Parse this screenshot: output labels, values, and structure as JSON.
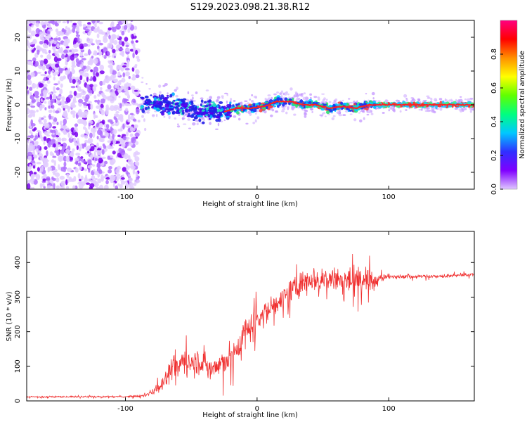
{
  "figure": {
    "title": "S129.2023.098.21.38.R12"
  },
  "colors": {
    "snr_line": "#f03030",
    "frequency_line": "#ff2020",
    "background": "#ffffff",
    "colorbar_stops": [
      "#e0c8ff",
      "#8000ff",
      "#3030ff",
      "#00c8ff",
      "#00ff80",
      "#60ff00",
      "#ffff00",
      "#ff9000",
      "#ff0000",
      "#ff0080"
    ]
  },
  "chart_data": [
    {
      "type": "heatmap",
      "xlabel": "Height of straight line (km)",
      "ylabel": "Frequency (Hz)",
      "xlim": [
        -175,
        165
      ],
      "ylim": [
        -25,
        25
      ],
      "xticks": [
        -100,
        0,
        100
      ],
      "xtick_labels": [
        "-100",
        "0",
        "100"
      ],
      "yticks": [
        -20,
        -10,
        0,
        10,
        20
      ],
      "ytick_labels": [
        "-20",
        "-10",
        "0",
        "10",
        "20"
      ],
      "grid": false,
      "colorbar": {
        "label": "Normalized spectral amplitude",
        "range": [
          0,
          1
        ],
        "ticks": [
          0.0,
          0.2,
          0.4,
          0.6,
          0.8
        ],
        "tick_labels": [
          "0.0",
          "0.2",
          "0.4",
          "0.6",
          "0.8"
        ]
      },
      "line_centre": {
        "x": [
          -85,
          -75,
          -65,
          -55,
          -45,
          -35,
          -25,
          -15,
          -5,
          5,
          15,
          25,
          35,
          45,
          55,
          65,
          75,
          85,
          95,
          110,
          130,
          150,
          165
        ],
        "y": [
          0.5,
          0.0,
          0.0,
          -1.0,
          -2.0,
          -1.5,
          -2.0,
          -1.0,
          -1.0,
          -0.5,
          1.0,
          1.0,
          0.0,
          0.0,
          -1.0,
          -0.5,
          -1.0,
          0.0,
          0.0,
          0.0,
          0.0,
          0.0,
          0.0
        ]
      }
    },
    {
      "type": "line",
      "xlabel": "Height of straight line (km)",
      "ylabel": "SNR (10 * v/v)",
      "xlim": [
        -175,
        165
      ],
      "ylim": [
        0,
        490
      ],
      "xticks": [
        -100,
        0,
        100
      ],
      "xtick_labels": [
        "-100",
        "0",
        "100"
      ],
      "yticks": [
        0,
        100,
        200,
        300,
        400
      ],
      "ytick_labels": [
        "0",
        "100",
        "200",
        "300",
        "400"
      ],
      "grid": false,
      "series": [
        {
          "x": [
            -175,
            -150,
            -125,
            -100,
            -85,
            -75,
            -65,
            -55,
            -45,
            -35,
            -25,
            -15,
            -10,
            -5,
            0,
            10,
            20,
            30,
            40,
            50,
            60,
            70,
            80,
            85,
            90,
            100,
            120,
            140,
            165
          ],
          "values": [
            12,
            12,
            12,
            12,
            15,
            40,
            85,
            120,
            115,
            95,
            110,
            150,
            190,
            220,
            245,
            265,
            300,
            330,
            355,
            355,
            355,
            345,
            350,
            350,
            350,
            360,
            360,
            360,
            365
          ],
          "noise": [
            3,
            3,
            3,
            3,
            6,
            25,
            50,
            60,
            55,
            50,
            60,
            70,
            70,
            65,
            60,
            55,
            50,
            50,
            50,
            55,
            55,
            55,
            60,
            50,
            25,
            10,
            8,
            8,
            8
          ]
        }
      ]
    }
  ]
}
